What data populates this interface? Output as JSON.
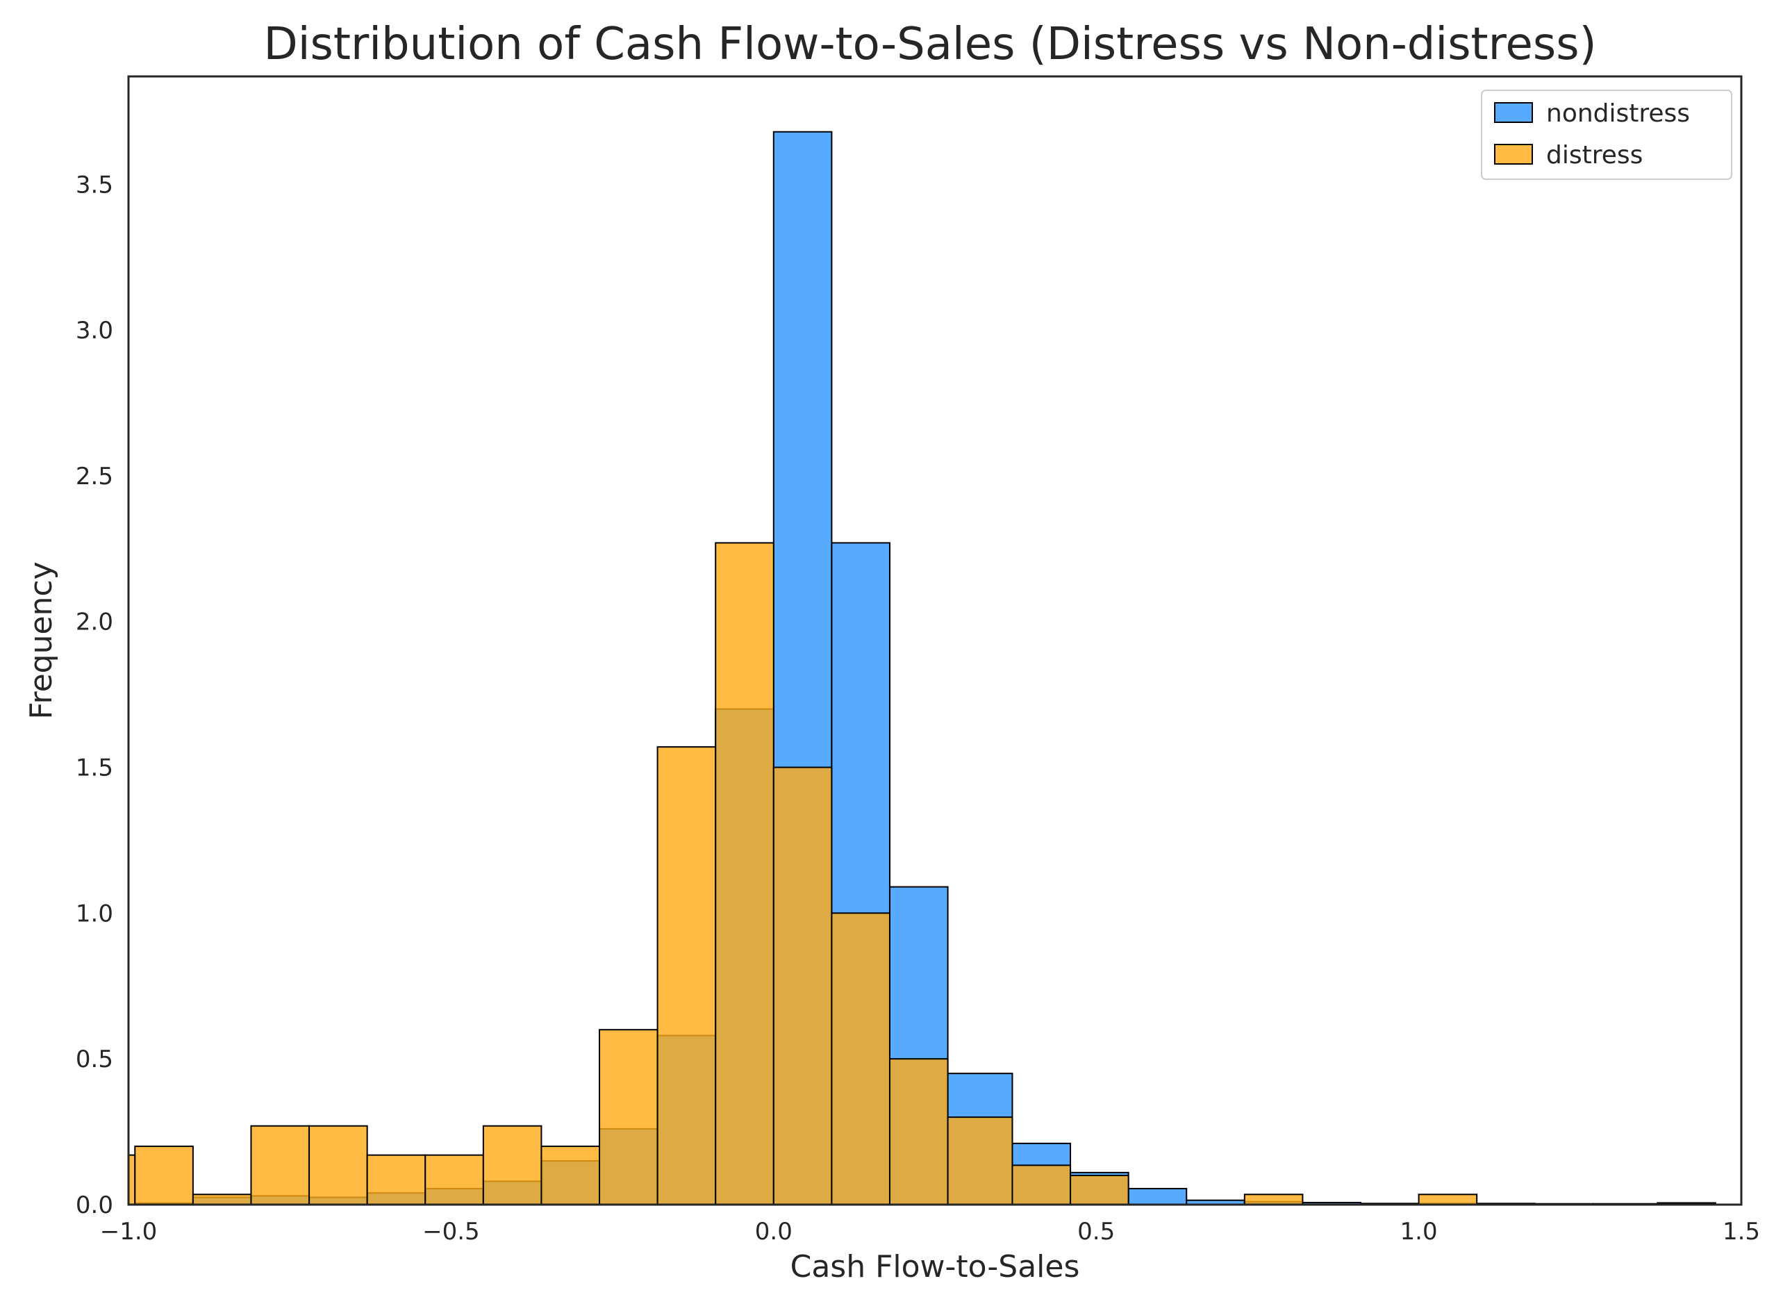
{
  "chart_data": {
    "type": "histogram",
    "title": "Distribution of Cash Flow-to-Sales (Distress vs Non-distress)",
    "xlabel": "Cash Flow-to-Sales",
    "ylabel": "Frequency",
    "xlim": [
      -1.0,
      1.5
    ],
    "ylim": [
      0,
      3.87
    ],
    "xticks": [
      -1.0,
      -0.5,
      0.0,
      0.5,
      1.0,
      1.5
    ],
    "xtick_labels": [
      "−1.0",
      "−0.5",
      "0.0",
      "0.5",
      "1.0",
      "1.5"
    ],
    "yticks": [
      0.0,
      0.5,
      1.0,
      1.5,
      2.0,
      2.5,
      3.0,
      3.5
    ],
    "ytick_labels": [
      "0.0",
      "0.5",
      "1.0",
      "1.5",
      "2.0",
      "2.5",
      "3.0",
      "3.5"
    ],
    "grid": false,
    "legend_position": "top-right",
    "series": [
      {
        "name": "nondistress",
        "color": "#2E95FF",
        "opacity": 0.8,
        "bins": [
          {
            "x0": -0.99,
            "x1": -0.9,
            "y": 0.005
          },
          {
            "x0": -0.9,
            "x1": -0.81,
            "y": 0.025
          },
          {
            "x0": -0.81,
            "x1": -0.72,
            "y": 0.03
          },
          {
            "x0": -0.72,
            "x1": -0.63,
            "y": 0.025
          },
          {
            "x0": -0.63,
            "x1": -0.54,
            "y": 0.04
          },
          {
            "x0": -0.54,
            "x1": -0.45,
            "y": 0.055
          },
          {
            "x0": -0.45,
            "x1": -0.36,
            "y": 0.08
          },
          {
            "x0": -0.36,
            "x1": -0.27,
            "y": 0.15
          },
          {
            "x0": -0.27,
            "x1": -0.18,
            "y": 0.26
          },
          {
            "x0": -0.18,
            "x1": -0.09,
            "y": 0.58
          },
          {
            "x0": -0.09,
            "x1": 0.0,
            "y": 1.7
          },
          {
            "x0": 0.0,
            "x1": 0.09,
            "y": 3.68
          },
          {
            "x0": 0.09,
            "x1": 0.18,
            "y": 2.27
          },
          {
            "x0": 0.18,
            "x1": 0.27,
            "y": 1.09
          },
          {
            "x0": 0.27,
            "x1": 0.37,
            "y": 0.45
          },
          {
            "x0": 0.37,
            "x1": 0.46,
            "y": 0.21
          },
          {
            "x0": 0.46,
            "x1": 0.55,
            "y": 0.11
          },
          {
            "x0": 0.55,
            "x1": 0.64,
            "y": 0.055
          },
          {
            "x0": 0.64,
            "x1": 0.73,
            "y": 0.015
          },
          {
            "x0": 0.73,
            "x1": 0.82,
            "y": 0.01
          },
          {
            "x0": 0.82,
            "x1": 0.91,
            "y": 0.007
          },
          {
            "x0": 0.91,
            "x1": 1.0,
            "y": 0.004
          },
          {
            "x0": 1.0,
            "x1": 1.09,
            "y": 0.004
          },
          {
            "x0": 1.09,
            "x1": 1.18,
            "y": 0.004
          },
          {
            "x0": 1.18,
            "x1": 1.27,
            "y": 0.003
          },
          {
            "x0": 1.27,
            "x1": 1.37,
            "y": 0.003
          },
          {
            "x0": 1.37,
            "x1": 1.46,
            "y": 0.006
          }
        ]
      },
      {
        "name": "distress",
        "color": "#FFAA14",
        "opacity": 0.8,
        "bins": [
          {
            "x0": -1.08,
            "x1": -0.99,
            "y": 0.17
          },
          {
            "x0": -0.99,
            "x1": -0.9,
            "y": 0.2
          },
          {
            "x0": -0.9,
            "x1": -0.81,
            "y": 0.035
          },
          {
            "x0": -0.81,
            "x1": -0.72,
            "y": 0.27
          },
          {
            "x0": -0.72,
            "x1": -0.63,
            "y": 0.27
          },
          {
            "x0": -0.63,
            "x1": -0.54,
            "y": 0.17
          },
          {
            "x0": -0.54,
            "x1": -0.45,
            "y": 0.17
          },
          {
            "x0": -0.45,
            "x1": -0.36,
            "y": 0.27
          },
          {
            "x0": -0.36,
            "x1": -0.27,
            "y": 0.2
          },
          {
            "x0": -0.27,
            "x1": -0.18,
            "y": 0.6
          },
          {
            "x0": -0.18,
            "x1": -0.09,
            "y": 1.57
          },
          {
            "x0": -0.09,
            "x1": 0.0,
            "y": 2.27
          },
          {
            "x0": 0.0,
            "x1": 0.09,
            "y": 1.5
          },
          {
            "x0": 0.09,
            "x1": 0.18,
            "y": 1.0
          },
          {
            "x0": 0.18,
            "x1": 0.27,
            "y": 0.5
          },
          {
            "x0": 0.27,
            "x1": 0.37,
            "y": 0.3
          },
          {
            "x0": 0.37,
            "x1": 0.46,
            "y": 0.135
          },
          {
            "x0": 0.46,
            "x1": 0.55,
            "y": 0.1
          },
          {
            "x0": 0.73,
            "x1": 0.82,
            "y": 0.035
          },
          {
            "x0": 1.0,
            "x1": 1.09,
            "y": 0.035
          }
        ]
      }
    ]
  }
}
